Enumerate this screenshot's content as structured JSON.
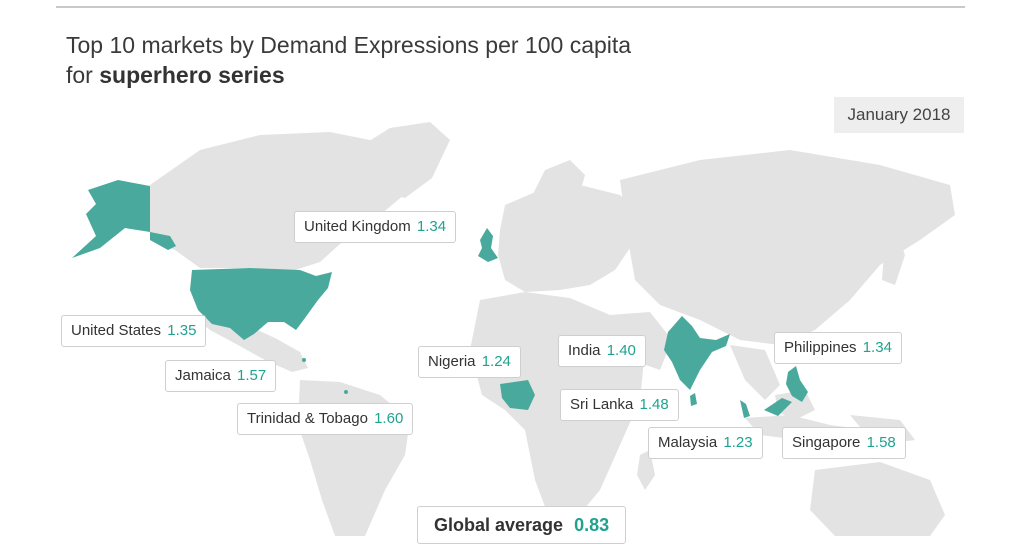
{
  "title_line1": "Top 10 markets by Demand Expressions per 100 capita",
  "title_line2_prefix": "for ",
  "title_line2_bold": "superhero series",
  "date": "January 2018",
  "colors": {
    "highlight": "#4aa99d",
    "land": "#e3e3e3",
    "value": "#1fa38f"
  },
  "markets": [
    {
      "name": "United Kingdom",
      "value": "1.34"
    },
    {
      "name": "United States",
      "value": "1.35"
    },
    {
      "name": "Jamaica",
      "value": "1.57"
    },
    {
      "name": "Trinidad & Tobago",
      "value": "1.60"
    },
    {
      "name": "Nigeria",
      "value": "1.24"
    },
    {
      "name": "India",
      "value": "1.40"
    },
    {
      "name": "Sri Lanka",
      "value": "1.48"
    },
    {
      "name": "Philippines",
      "value": "1.34"
    },
    {
      "name": "Malaysia",
      "value": "1.23"
    },
    {
      "name": "Singapore",
      "value": "1.58"
    }
  ],
  "global_average": {
    "label": "Global average",
    "value": "0.83"
  }
}
